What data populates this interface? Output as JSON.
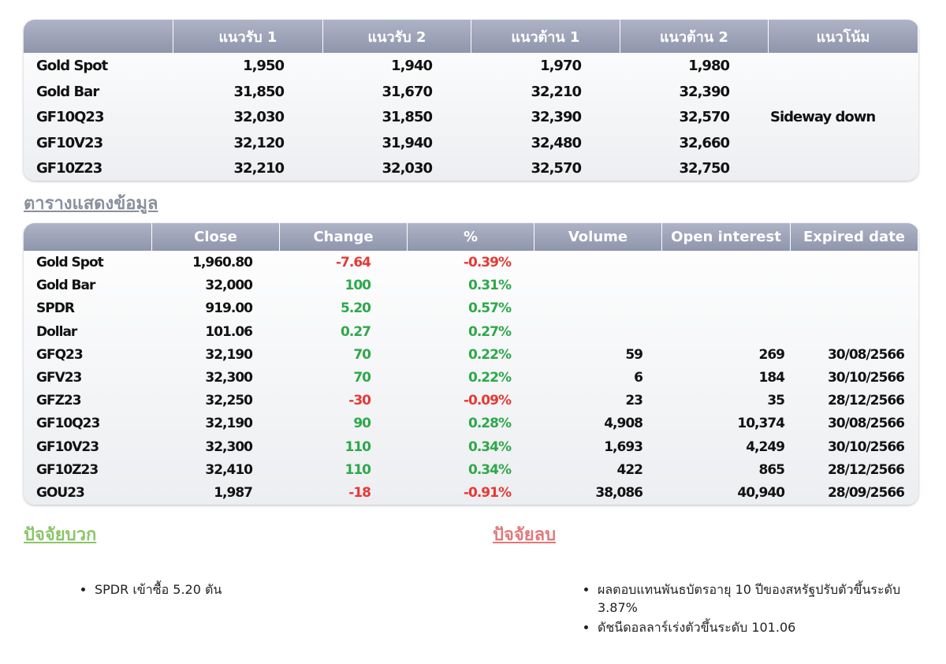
{
  "table1": {
    "headers": [
      "แนวรับ 1",
      "แนวรับ 2",
      "แนวต้าน 1",
      "แนวต้าน 2",
      "แนวโน้ม"
    ],
    "rows": [
      [
        "Gold Spot",
        "1,950",
        "1,940",
        "1,970",
        "1,980"
      ],
      [
        "Gold Bar",
        "31,850",
        "31,670",
        "32,210",
        "32,390"
      ],
      [
        "GF10Q23",
        "32,030",
        "31,850",
        "32,390",
        "32,570"
      ],
      [
        "GF10V23",
        "32,120",
        "31,940",
        "32,480",
        "32,660"
      ],
      [
        "GF10Z23",
        "32,210",
        "32,030",
        "32,570",
        "32,750"
      ]
    ],
    "trend": "Sideway down"
  },
  "section_title": "ตารางแสดงข้อมูล",
  "table2": {
    "headers": [
      "Close",
      "Change",
      "%",
      "Volume",
      "Open interest",
      "Expired date"
    ],
    "rows": [
      [
        "Gold Spot",
        "1,960.80",
        "-7.64",
        "-0.39%",
        null,
        null,
        null
      ],
      [
        "Gold Bar",
        "32,000",
        "100",
        "0.31%",
        null,
        null,
        null
      ],
      [
        "SPDR",
        "919.00",
        "5.20",
        "0.57%",
        null,
        null,
        null
      ],
      [
        "Dollar",
        "101.06",
        "0.27",
        "0.27%",
        null,
        null,
        null
      ],
      [
        "GFQ23",
        "32,190",
        "70",
        "0.22%",
        "59",
        "269",
        "30/08/2566"
      ],
      [
        "GFV23",
        "32,300",
        "70",
        "0.22%",
        "6",
        "184",
        "30/10/2566"
      ],
      [
        "GFZ23",
        "32,250",
        "-30",
        "-0.09%",
        "23",
        "35",
        "28/12/2566"
      ],
      [
        "GF10Q23",
        "32,190",
        "90",
        "0.28%",
        "4,908",
        "10,374",
        "30/08/2566"
      ],
      [
        "GF10V23",
        "32,300",
        "110",
        "0.34%",
        "1,693",
        "4,249",
        "30/10/2566"
      ],
      [
        "GF10Z23",
        "32,410",
        "110",
        "0.34%",
        "422",
        "865",
        "28/12/2566"
      ],
      [
        "GOU23",
        "1,987",
        "-18",
        "-0.91%",
        "38,086",
        "40,940",
        "28/09/2566"
      ]
    ]
  },
  "positive": {
    "title": "ปัจจัยบวก",
    "items": [
      "SPDR เข้าซื้อ 5.20 ตัน"
    ]
  },
  "negative": {
    "title": "ปัจจัยลบ",
    "items": [
      "ผลตอบแทนพันธบัตรอายุ 10 ปีของสหรัฐปรับตัวขึ้นระดับ 3.87%",
      "ดัชนีดอลลาร์เร่งตัวขึ้นระดับ 101.06"
    ]
  }
}
